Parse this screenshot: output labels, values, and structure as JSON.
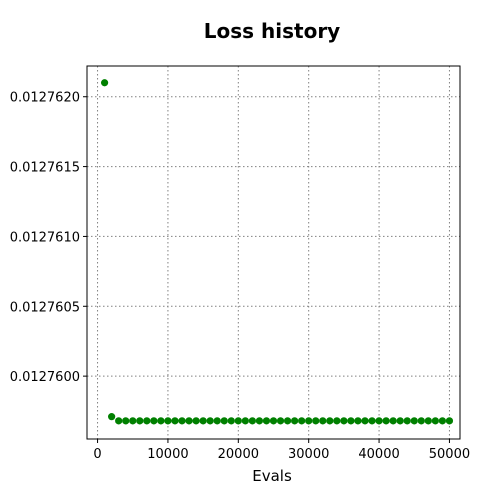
{
  "chart_data": {
    "type": "scatter",
    "title": "Loss history",
    "xlabel": "Evals",
    "ylabel": "",
    "xlim": [
      -1500,
      51500
    ],
    "ylim": [
      0.01275955,
      0.01276222
    ],
    "xticks": [
      0,
      10000,
      20000,
      30000,
      40000,
      50000
    ],
    "xtick_labels": [
      "0",
      "10000",
      "20000",
      "30000",
      "40000",
      "50000"
    ],
    "yticks": [
      0.01276,
      0.0127605,
      0.012761,
      0.0127615,
      0.012762
    ],
    "ytick_labels": [
      "0.0127600",
      "0.0127605",
      "0.0127610",
      "0.0127615",
      "0.0127620"
    ],
    "grid": true,
    "marker_color": "#008000",
    "x": [
      1000,
      2000,
      3000,
      4000,
      5000,
      6000,
      7000,
      8000,
      9000,
      10000,
      11000,
      12000,
      13000,
      14000,
      15000,
      16000,
      17000,
      18000,
      19000,
      20000,
      21000,
      22000,
      23000,
      24000,
      25000,
      26000,
      27000,
      28000,
      29000,
      30000,
      31000,
      32000,
      33000,
      34000,
      35000,
      36000,
      37000,
      38000,
      39000,
      40000,
      41000,
      42000,
      43000,
      44000,
      45000,
      46000,
      47000,
      48000,
      49000,
      50000
    ],
    "y": [
      0.0127621,
      0.01275971,
      0.01275968,
      0.01275968,
      0.01275968,
      0.01275968,
      0.01275968,
      0.01275968,
      0.01275968,
      0.01275968,
      0.01275968,
      0.01275968,
      0.01275968,
      0.01275968,
      0.01275968,
      0.01275968,
      0.01275968,
      0.01275968,
      0.01275968,
      0.01275968,
      0.01275968,
      0.01275968,
      0.01275968,
      0.01275968,
      0.01275968,
      0.01275968,
      0.01275968,
      0.01275968,
      0.01275968,
      0.01275968,
      0.01275968,
      0.01275968,
      0.01275968,
      0.01275968,
      0.01275968,
      0.01275968,
      0.01275968,
      0.01275968,
      0.01275968,
      0.01275968,
      0.01275968,
      0.01275968,
      0.01275968,
      0.01275968,
      0.01275968,
      0.01275968,
      0.01275968,
      0.01275968,
      0.01275968,
      0.01275968
    ]
  }
}
